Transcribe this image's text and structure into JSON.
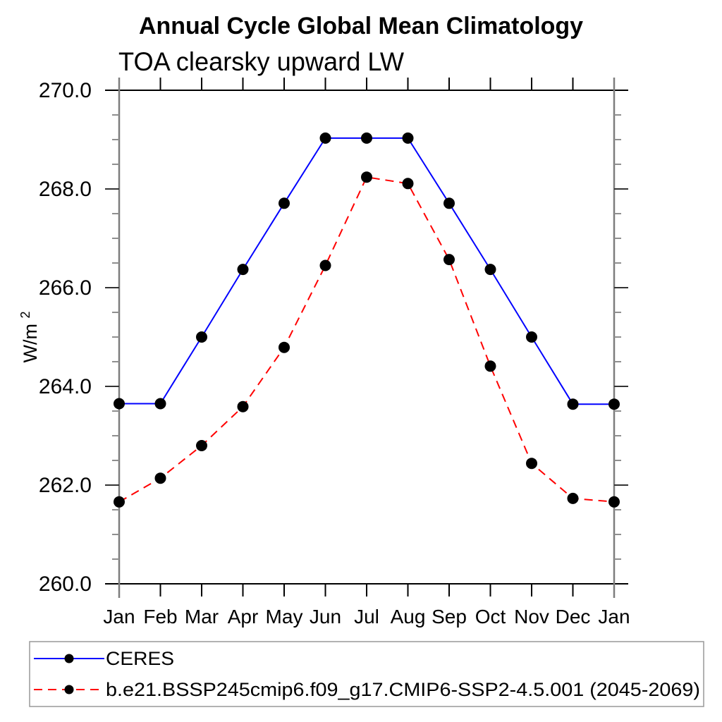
{
  "title": "Annual Cycle Global Mean Climatology",
  "subtitle": "TOA clearsky upward LW",
  "y_axis": {
    "title_base": "W/m",
    "title_exponent": "2",
    "tick_values": [
      270,
      268,
      266,
      264,
      262,
      260
    ],
    "tick_labels": [
      "270.0",
      "268.0",
      "266.0",
      "264.0",
      "262.0",
      "260.0"
    ],
    "range": [
      260.0,
      270.0
    ],
    "major_step": 2.0,
    "minor_step": 0.5
  },
  "x_axis": {
    "tick_labels": [
      "Jan",
      "Feb",
      "Mar",
      "Apr",
      "May",
      "Jun",
      "Jul",
      "Aug",
      "Sep",
      "Oct",
      "Nov",
      "Dec",
      "Jan"
    ]
  },
  "legend": {
    "items": [
      {
        "label": "CERES",
        "color": "#0000ff",
        "line_style": "solid"
      },
      {
        "label": "b.e21.BSSP245cmip6.f09_g17.CMIP6-SSP2-4.5.001 (2045-2069)",
        "color": "#ff0000",
        "line_style": "dashed"
      }
    ]
  },
  "colors": {
    "series_1": "#0000ff",
    "series_2": "#ff0000",
    "marker": "#000000",
    "axis_horizontal": "#000000",
    "axis_vertical": "#7d7d7d",
    "minor_tick": "#8f8f8f",
    "major_tick": "#333333",
    "legend_border": "#999999"
  },
  "chart_data": {
    "type": "line",
    "title": "Annual Cycle Global Mean Climatology",
    "subtitle": "TOA clearsky upward LW",
    "xlabel": "",
    "ylabel": "W/m^2",
    "ylim": [
      260.0,
      270.0
    ],
    "y_major_tick_step": 2.0,
    "y_minor_tick_step": 0.5,
    "grid": false,
    "legend_position": "bottom-left-box",
    "categories": [
      "Jan",
      "Feb",
      "Mar",
      "Apr",
      "May",
      "Jun",
      "Jul",
      "Aug",
      "Sep",
      "Oct",
      "Nov",
      "Dec",
      "Jan"
    ],
    "series": [
      {
        "name": "CERES",
        "color": "#0000ff",
        "line_style": "solid",
        "marker": "filled-circle",
        "values": [
          263.65,
          263.65,
          265.0,
          266.37,
          267.71,
          269.03,
          269.03,
          269.03,
          267.71,
          266.37,
          265.0,
          263.64,
          263.64
        ]
      },
      {
        "name": "b.e21.BSSP245cmip6.f09_g17.CMIP6-SSP2-4.5.001 (2045-2069)",
        "color": "#ff0000",
        "line_style": "dashed",
        "marker": "filled-circle",
        "values": [
          261.66,
          262.14,
          262.8,
          263.59,
          264.79,
          266.45,
          268.24,
          268.11,
          266.57,
          264.41,
          262.44,
          261.73,
          261.66
        ]
      }
    ]
  }
}
